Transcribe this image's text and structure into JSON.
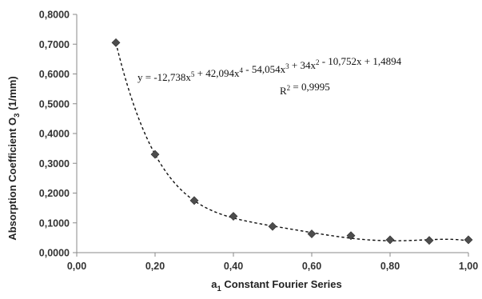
{
  "chart_data": {
    "type": "scatter",
    "title": "",
    "xlabel": {
      "main": "a",
      "sub": "1",
      "rest": " Constant Fourier Series"
    },
    "ylabel": {
      "main": "Absorption Coefficient O",
      "sub": "3",
      "rest": " (1/mm)"
    },
    "xlim": [
      0,
      1
    ],
    "ylim": [
      0,
      0.8
    ],
    "x_ticks": [
      0,
      0.2,
      0.4,
      0.6,
      0.8,
      1.0
    ],
    "x_tick_labels": [
      "0,00",
      "0,20",
      "0,40",
      "0,60",
      "0,80",
      "1,00"
    ],
    "y_ticks": [
      0,
      0.1,
      0.2,
      0.3,
      0.4,
      0.5,
      0.6,
      0.7,
      0.8
    ],
    "y_tick_labels": [
      "0,0000",
      "0,1000",
      "0,2000",
      "0,3000",
      "0,4000",
      "0,5000",
      "0,6000",
      "0,7000",
      "0,8000"
    ],
    "grid": false,
    "marker_color": "#4d4d4d",
    "trendline_color": "#111111",
    "series": [
      {
        "x": [
          0.1,
          0.2,
          0.3,
          0.4,
          0.5,
          0.6,
          0.7,
          0.8,
          0.9,
          1.0
        ],
        "y": [
          0.705,
          0.33,
          0.175,
          0.122,
          0.088,
          0.063,
          0.057,
          0.043,
          0.041,
          0.043
        ]
      }
    ],
    "trendline": {
      "type": "polynomial",
      "coefficients_high_to_low": [
        -12.738,
        42.094,
        -54.054,
        34,
        -10.752,
        1.4894
      ],
      "equation_parts": [
        {
          "t": "y = -12,738x"
        },
        {
          "s": "5"
        },
        {
          "t": " + 42,094x"
        },
        {
          "s": "4"
        },
        {
          "t": " - 54,054x"
        },
        {
          "s": "3"
        },
        {
          "t": " + 34x"
        },
        {
          "s": "2"
        },
        {
          "t": " - 10,752x + 1,4894"
        }
      ],
      "r2_parts": [
        {
          "t": "R"
        },
        {
          "s": "2"
        },
        {
          "t": " = 0,9995"
        }
      ]
    }
  }
}
